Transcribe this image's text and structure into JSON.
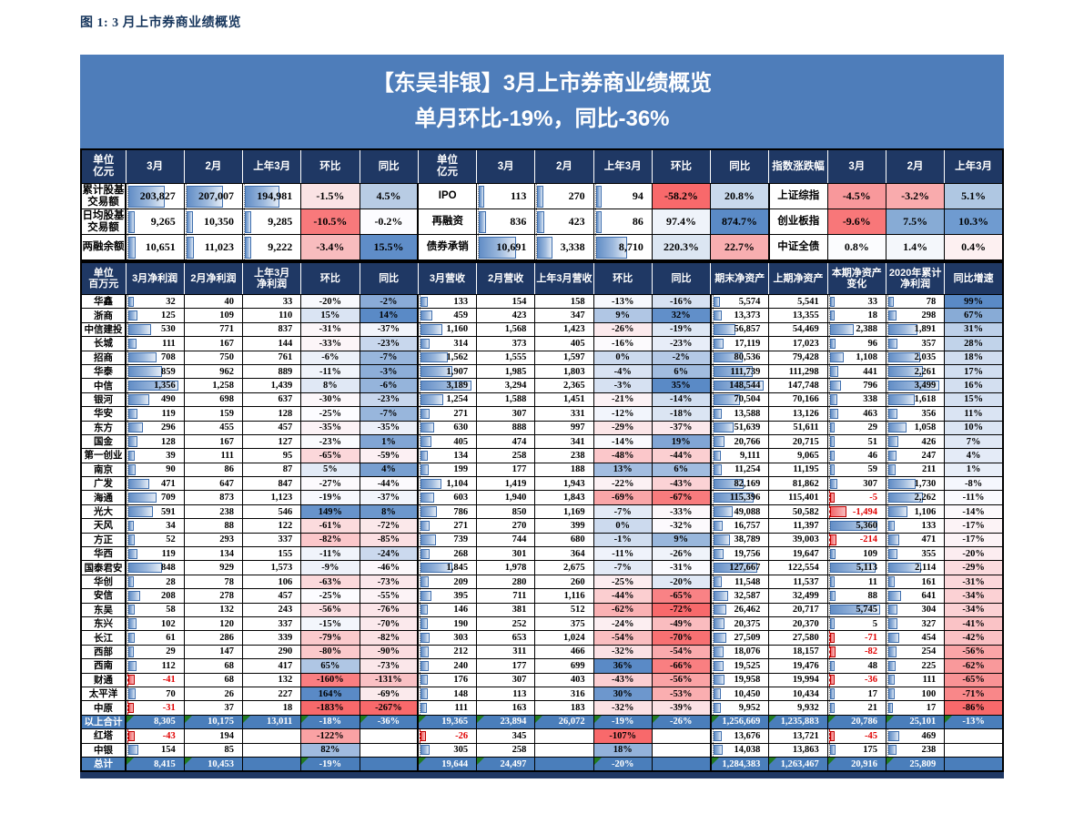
{
  "page_title": "图 1:  3 月上市券商业绩概览",
  "banner": {
    "line1": "【东吴非银】3月上市券商业绩概览",
    "line2": "单月环比-19%，同比-36%"
  },
  "colors": {
    "banner_blue": "#4E7DBA",
    "header_navy": "#1F3864",
    "total_row_blue": "#4A7EBB",
    "scale_red": "#F8696B",
    "scale_white": "#FCFCFF",
    "scale_blue": "#5A8AC6",
    "negative_text": "#E00000"
  },
  "table1": {
    "header": [
      "单位\n亿元",
      "3月",
      "2月",
      "上年3月",
      "环比",
      "同比",
      "单位\n亿元",
      "3月",
      "2月",
      "上年3月",
      "环比",
      "同比",
      "指数涨跌幅",
      "3月",
      "2月",
      "上年3月"
    ],
    "label_cols": [
      0,
      6,
      12
    ],
    "group_seps": [
      0,
      5,
      11
    ],
    "rows": [
      {
        "cells": [
          "累计股基\n交易额",
          "203,827",
          "207,007",
          "194,981",
          "-1.5%",
          "4.5%",
          "IPO",
          "113",
          "270",
          "94",
          "-58.2%",
          "20.8%",
          "上证综指",
          "-4.5%",
          "-3.2%",
          "5.1%"
        ],
        "bar": {
          "1": 0.6,
          "2": 0.61,
          "3": 0.57,
          "7": 0.066,
          "8": 0.075,
          "9": 0.064
        },
        "bg": {
          "4": "#FAE3E4",
          "5": "#B8CCE4",
          "10": "#F8696B",
          "11": "#C9D9EC",
          "13": "#F8989B",
          "14": "#F9ABAD",
          "15": "#AFC7E2"
        }
      },
      {
        "cells": [
          "日均股基\n交易额",
          "9,265",
          "10,350",
          "9,285",
          "-10.5%",
          "-0.2%",
          "再融资",
          "836",
          "423",
          "86",
          "97.4%",
          "874.7%",
          "创业板指",
          "-9.6%",
          "7.5%",
          "10.3%"
        ],
        "bar": {
          "1": 0.085,
          "2": 0.09,
          "3": 0.085,
          "7": 0.1,
          "8": 0.082,
          "9": 0.063
        },
        "bg": {
          "4": "#F8797B",
          "5": "#FCFCFF",
          "10": "#EFF3FA",
          "11": "#5A8AC6",
          "13": "#F87779",
          "14": "#87ABD5",
          "15": "#6F9BD0"
        }
      },
      {
        "cells": [
          "两融余额",
          "10,651",
          "11,023",
          "9,222",
          "-3.4%",
          "15.5%",
          "债券承销",
          "10,691",
          "3,338",
          "8,710",
          "220.3%",
          "22.7%",
          "中证全债",
          "0.8%",
          "1.4%",
          "0.4%"
        ],
        "bar": {
          "1": 0.09,
          "2": 0.093,
          "3": 0.084,
          "7": 0.61,
          "8": 0.23,
          "9": 0.51
        },
        "bg": {
          "4": "#F8BCBE",
          "5": "#5F8DC8",
          "10": "#DCE6F2",
          "11": "#F8AEB0",
          "13": "#FBFCFE",
          "14": "#F4F7FB",
          "15": "#FDF0F1"
        }
      }
    ]
  },
  "table2": {
    "header": [
      "单位\n百万元",
      "3月净利润",
      "2月净利润",
      "上年3月\n净利润",
      "环比",
      "同比",
      "3月营收",
      "2月营收",
      "上年3月营收",
      "环比",
      "同比",
      "期末净资产",
      "上期净资产",
      "本期净资产\n变化",
      "2020年累计\n净利润",
      "同比增速"
    ],
    "group_seps": [
      0,
      5,
      10
    ],
    "bar_cols": [
      1,
      6,
      11,
      13,
      14
    ],
    "scale_cols": [
      4,
      5,
      9,
      10,
      15
    ],
    "totals": [
      "以上合计",
      "总计"
    ],
    "rows": [
      [
        "华鑫",
        "32",
        "40",
        "33",
        "-20%",
        "-2%",
        "133",
        "154",
        "158",
        "-13%",
        "-16%",
        "5,574",
        "5,541",
        "33",
        "78",
        "99%"
      ],
      [
        "浙商",
        "125",
        "109",
        "110",
        "15%",
        "14%",
        "459",
        "423",
        "347",
        "9%",
        "32%",
        "13,373",
        "13,355",
        "18",
        "298",
        "67%"
      ],
      [
        "中信建投",
        "530",
        "771",
        "837",
        "-31%",
        "-37%",
        "1,160",
        "1,568",
        "1,423",
        "-26%",
        "-19%",
        "56,857",
        "54,469",
        "2,388",
        "1,891",
        "31%"
      ],
      [
        "长城",
        "111",
        "167",
        "144",
        "-33%",
        "-23%",
        "314",
        "373",
        "405",
        "-16%",
        "-23%",
        "17,119",
        "17,023",
        "96",
        "357",
        "28%"
      ],
      [
        "招商",
        "708",
        "750",
        "761",
        "-6%",
        "-7%",
        "1,562",
        "1,555",
        "1,597",
        "0%",
        "-2%",
        "80,536",
        "79,428",
        "1,108",
        "2,035",
        "18%"
      ],
      [
        "华泰",
        "859",
        "962",
        "889",
        "-11%",
        "-3%",
        "1,907",
        "1,985",
        "1,803",
        "-4%",
        "6%",
        "111,739",
        "111,298",
        "441",
        "2,261",
        "17%"
      ],
      [
        "中信",
        "1,356",
        "1,258",
        "1,439",
        "8%",
        "-6%",
        "3,189",
        "3,294",
        "2,365",
        "-3%",
        "35%",
        "148,544",
        "147,748",
        "796",
        "3,499",
        "16%"
      ],
      [
        "银河",
        "490",
        "698",
        "637",
        "-30%",
        "-23%",
        "1,254",
        "1,588",
        "1,451",
        "-21%",
        "-14%",
        "70,504",
        "70,166",
        "338",
        "1,618",
        "15%"
      ],
      [
        "华安",
        "119",
        "159",
        "128",
        "-25%",
        "-7%",
        "271",
        "307",
        "331",
        "-12%",
        "-18%",
        "13,588",
        "13,126",
        "463",
        "356",
        "11%"
      ],
      [
        "东方",
        "296",
        "455",
        "457",
        "-35%",
        "-35%",
        "630",
        "888",
        "997",
        "-29%",
        "-37%",
        "51,639",
        "51,611",
        "29",
        "1,058",
        "10%"
      ],
      [
        "国金",
        "128",
        "167",
        "127",
        "-23%",
        "1%",
        "405",
        "474",
        "341",
        "-14%",
        "19%",
        "20,766",
        "20,715",
        "51",
        "426",
        "7%"
      ],
      [
        "第一创业",
        "39",
        "111",
        "95",
        "-65%",
        "-59%",
        "134",
        "258",
        "238",
        "-48%",
        "-44%",
        "9,111",
        "9,065",
        "46",
        "247",
        "4%"
      ],
      [
        "南京",
        "90",
        "86",
        "87",
        "5%",
        "4%",
        "199",
        "177",
        "188",
        "13%",
        "6%",
        "11,254",
        "11,195",
        "59",
        "211",
        "1%"
      ],
      [
        "广发",
        "471",
        "647",
        "847",
        "-27%",
        "-44%",
        "1,104",
        "1,419",
        "1,943",
        "-22%",
        "-43%",
        "82,169",
        "81,862",
        "307",
        "1,730",
        "-8%"
      ],
      [
        "海通",
        "709",
        "873",
        "1,123",
        "-19%",
        "-37%",
        "603",
        "1,940",
        "1,843",
        "-69%",
        "-67%",
        "115,396",
        "115,401",
        "-5",
        "2,262",
        "-11%"
      ],
      [
        "光大",
        "591",
        "238",
        "546",
        "149%",
        "8%",
        "786",
        "850",
        "1,169",
        "-7%",
        "-33%",
        "49,088",
        "50,582",
        "-1,494",
        "1,106",
        "-14%"
      ],
      [
        "天风",
        "34",
        "88",
        "122",
        "-61%",
        "-72%",
        "271",
        "270",
        "399",
        "0%",
        "-32%",
        "16,757",
        "11,397",
        "5,360",
        "133",
        "-17%"
      ],
      [
        "方正",
        "52",
        "293",
        "337",
        "-82%",
        "-85%",
        "739",
        "744",
        "680",
        "-1%",
        "9%",
        "38,789",
        "39,003",
        "-214",
        "471",
        "-17%"
      ],
      [
        "华西",
        "119",
        "134",
        "155",
        "-11%",
        "-24%",
        "268",
        "301",
        "364",
        "-11%",
        "-26%",
        "19,756",
        "19,647",
        "109",
        "355",
        "-20%"
      ],
      [
        "国泰君安",
        "848",
        "929",
        "1,573",
        "-9%",
        "-46%",
        "1,845",
        "1,978",
        "2,675",
        "-7%",
        "-31%",
        "127,667",
        "122,554",
        "5,113",
        "2,114",
        "-29%"
      ],
      [
        "华创",
        "28",
        "78",
        "106",
        "-63%",
        "-73%",
        "209",
        "280",
        "260",
        "-25%",
        "-20%",
        "11,548",
        "11,537",
        "11",
        "161",
        "-31%"
      ],
      [
        "安信",
        "208",
        "278",
        "457",
        "-25%",
        "-55%",
        "395",
        "711",
        "1,116",
        "-44%",
        "-65%",
        "32,587",
        "32,499",
        "88",
        "641",
        "-34%"
      ],
      [
        "东吴",
        "58",
        "132",
        "243",
        "-56%",
        "-76%",
        "146",
        "381",
        "512",
        "-62%",
        "-72%",
        "26,462",
        "20,717",
        "5,745",
        "304",
        "-34%"
      ],
      [
        "东兴",
        "102",
        "120",
        "337",
        "-15%",
        "-70%",
        "190",
        "252",
        "375",
        "-24%",
        "-49%",
        "20,375",
        "20,370",
        "5",
        "327",
        "-41%"
      ],
      [
        "长江",
        "61",
        "286",
        "339",
        "-79%",
        "-82%",
        "303",
        "653",
        "1,024",
        "-54%",
        "-70%",
        "27,509",
        "27,580",
        "-71",
        "454",
        "-42%"
      ],
      [
        "西部",
        "29",
        "147",
        "290",
        "-80%",
        "-90%",
        "212",
        "311",
        "466",
        "-32%",
        "-54%",
        "18,076",
        "18,157",
        "-82",
        "254",
        "-56%"
      ],
      [
        "西南",
        "112",
        "68",
        "417",
        "65%",
        "-73%",
        "240",
        "177",
        "699",
        "36%",
        "-66%",
        "19,525",
        "19,476",
        "48",
        "225",
        "-62%"
      ],
      [
        "财通",
        "-41",
        "68",
        "132",
        "-160%",
        "-131%",
        "176",
        "307",
        "403",
        "-43%",
        "-56%",
        "19,958",
        "19,994",
        "-36",
        "111",
        "-65%"
      ],
      [
        "太平洋",
        "70",
        "26",
        "227",
        "164%",
        "-69%",
        "148",
        "113",
        "316",
        "30%",
        "-53%",
        "10,450",
        "10,434",
        "17",
        "100",
        "-71%"
      ],
      [
        "中原",
        "-31",
        "37",
        "18",
        "-183%",
        "-267%",
        "111",
        "163",
        "183",
        "-32%",
        "-39%",
        "9,952",
        "9,932",
        "21",
        "17",
        "-86%"
      ],
      [
        "以上合计",
        "8,305",
        "10,175",
        "13,011",
        "-18%",
        "-36%",
        "19,365",
        "23,894",
        "26,072",
        "-19%",
        "-26%",
        "1,256,669",
        "1,235,883",
        "20,786",
        "25,101",
        "-13%"
      ],
      [
        "红塔",
        "-43",
        "194",
        "",
        "-122%",
        "",
        "-26",
        "345",
        "",
        "-107%",
        "",
        "13,676",
        "13,721",
        "-45",
        "469",
        ""
      ],
      [
        "中银",
        "154",
        "85",
        "",
        "82%",
        "",
        "305",
        "258",
        "",
        "18%",
        "",
        "14,038",
        "13,863",
        "175",
        "238",
        ""
      ],
      [
        "总计",
        "8,415",
        "10,453",
        "",
        "-19%",
        "",
        "19,644",
        "24,497",
        "",
        "-20%",
        "",
        "1,284,383",
        "1,263,467",
        "20,916",
        "25,809",
        ""
      ]
    ]
  }
}
